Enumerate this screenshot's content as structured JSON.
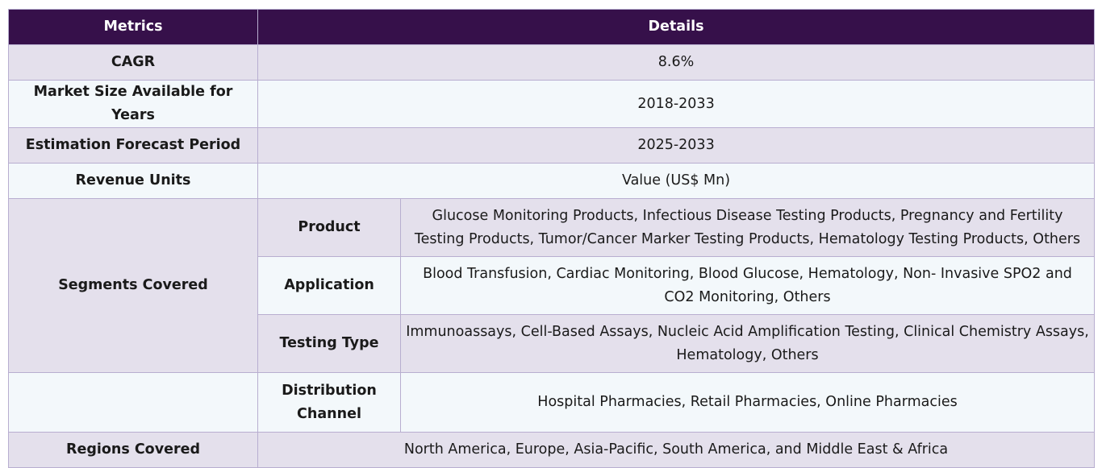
{
  "header": {
    "metrics": "Metrics",
    "details": "Details"
  },
  "rows": [
    {
      "metric": "CAGR",
      "detail": "8.6%"
    },
    {
      "metric": "Market Size Available for Years",
      "detail": "2018-2033"
    },
    {
      "metric": "Estimation Forecast Period",
      "detail": "2025-2033"
    },
    {
      "metric": "Revenue Units",
      "detail": "Value (US$ Mn)"
    }
  ],
  "segments": {
    "label": "Segments Covered",
    "items": [
      {
        "name": "Product",
        "detail": "Glucose Monitoring Products, Infectious Disease Testing Products, Pregnancy and Fertility Testing Products, Tumor/Cancer Marker Testing Products, Hematology Testing Products, Others"
      },
      {
        "name": "Application",
        "detail": "Blood Transfusion, Cardiac Monitoring, Blood Glucose, Hematology, Non- Invasive SPO2 and CO2 Monitoring, Others"
      },
      {
        "name": "Testing Type",
        "detail": "Immunoassays, Cell-Based Assays, Nucleic Acid Amplification Testing, Clinical Chemistry Assays, Hematology, Others"
      },
      {
        "name": "Distribution Channel",
        "detail": "Hospital Pharmacies, Retail Pharmacies, Online Pharmacies"
      }
    ]
  },
  "regions": {
    "metric": "Regions Covered",
    "detail": "North America, Europe, Asia-Pacific, South America, and Middle East & Africa"
  }
}
